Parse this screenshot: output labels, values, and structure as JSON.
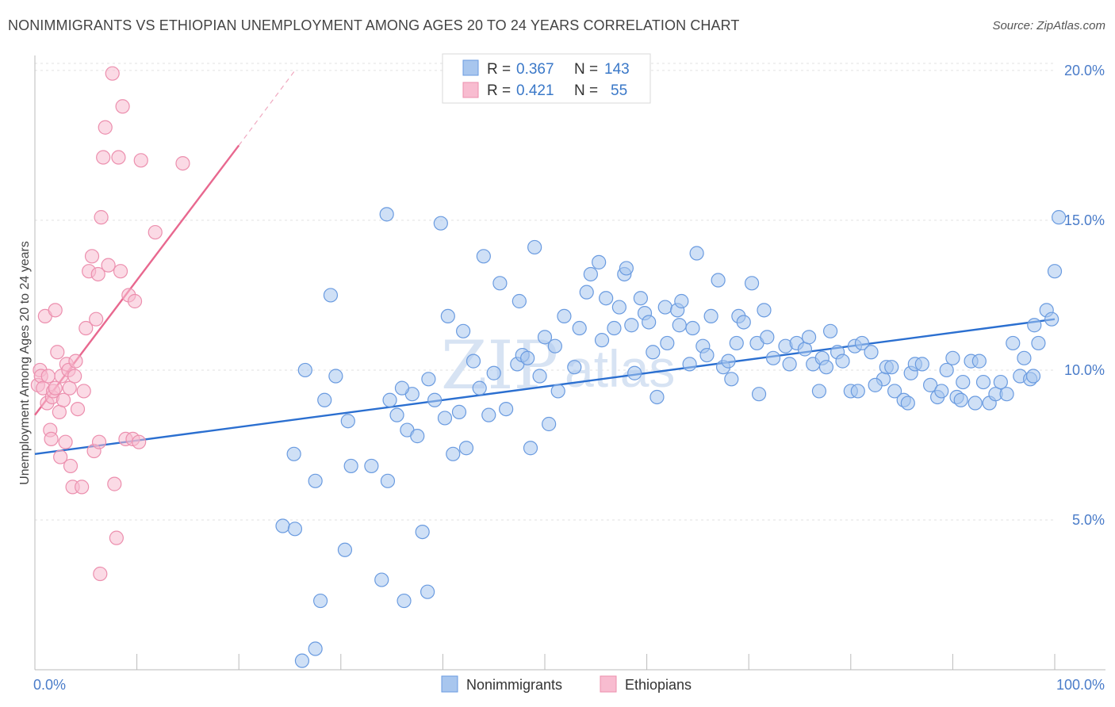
{
  "title": "NONIMMIGRANTS VS ETHIOPIAN UNEMPLOYMENT AMONG AGES 20 TO 24 YEARS CORRELATION CHART",
  "source": "Source: ZipAtlas.com",
  "watermark": {
    "zip": "ZIP",
    "atlas": "atlas"
  },
  "chart_data": {
    "type": "scatter",
    "ylabel": "Unemployment Among Ages 20 to 24 years",
    "xlim": [
      0,
      100
    ],
    "ylim": [
      0,
      20.5
    ],
    "x_tick_labels": [
      {
        "value": 0,
        "label": "0.0%"
      },
      {
        "value": 100,
        "label": "100.0%"
      }
    ],
    "y_ticks": [
      {
        "value": 5,
        "label": "5.0%"
      },
      {
        "value": 10,
        "label": "10.0%"
      },
      {
        "value": 15,
        "label": "15.0%"
      },
      {
        "value": 20,
        "label": "20.0%"
      }
    ],
    "x_minor_ticks": [
      0,
      10,
      20,
      30,
      40,
      50,
      60,
      70,
      80,
      90,
      100
    ],
    "grid": true,
    "legend": {
      "placement": "top-center",
      "rows": [
        {
          "r_label": "R =",
          "r": "0.367",
          "n_label": "N =",
          "n": "143",
          "color": "#a8c6ee",
          "stroke": "#6a9be0"
        },
        {
          "r_label": "R =",
          "r": "0.421",
          "n_label": "N =",
          "n": "55",
          "color": "#f8bcd0",
          "stroke": "#ec8fae"
        }
      ]
    },
    "series": [
      {
        "name": "Nonimmigrants",
        "color": "#a8c6ee",
        "stroke": "#6a9be0",
        "trend": {
          "x": [
            0,
            100
          ],
          "y": [
            7.2,
            11.7
          ],
          "color": "#2b6fd0"
        },
        "points": [
          [
            24.3,
            4.8
          ],
          [
            26.5,
            10.0
          ],
          [
            25.4,
            7.2
          ],
          [
            27.5,
            6.3
          ],
          [
            25.5,
            4.7
          ],
          [
            26.2,
            0.3
          ],
          [
            27.5,
            0.7
          ],
          [
            28.0,
            2.3
          ],
          [
            29.0,
            12.5
          ],
          [
            29.5,
            9.8
          ],
          [
            30.4,
            4.0
          ],
          [
            31.0,
            6.8
          ],
          [
            33.0,
            6.8
          ],
          [
            34.0,
            3.0
          ],
          [
            34.5,
            15.2
          ],
          [
            34.6,
            6.3
          ],
          [
            35.5,
            8.5
          ],
          [
            36.2,
            2.3
          ],
          [
            36.5,
            8.0
          ],
          [
            37.0,
            9.2
          ],
          [
            37.5,
            7.8
          ],
          [
            38.0,
            4.6
          ],
          [
            38.5,
            2.6
          ],
          [
            38.6,
            9.7
          ],
          [
            39.8,
            14.9
          ],
          [
            40.2,
            8.4
          ],
          [
            40.5,
            11.8
          ],
          [
            41.0,
            7.2
          ],
          [
            42.0,
            11.3
          ],
          [
            42.3,
            7.4
          ],
          [
            43.0,
            10.3
          ],
          [
            44.0,
            13.8
          ],
          [
            44.5,
            8.5
          ],
          [
            45.0,
            9.9
          ],
          [
            45.6,
            12.9
          ],
          [
            46.2,
            8.7
          ],
          [
            47.3,
            10.2
          ],
          [
            47.5,
            12.3
          ],
          [
            47.8,
            10.5
          ],
          [
            48.6,
            7.4
          ],
          [
            49.0,
            14.1
          ],
          [
            49.5,
            9.8
          ],
          [
            50.0,
            11.1
          ],
          [
            50.4,
            8.2
          ],
          [
            51.0,
            10.8
          ],
          [
            51.3,
            9.3
          ],
          [
            51.9,
            11.8
          ],
          [
            52.9,
            10.1
          ],
          [
            53.4,
            11.4
          ],
          [
            54.5,
            13.2
          ],
          [
            55.3,
            13.6
          ],
          [
            55.6,
            11.0
          ],
          [
            56.0,
            12.4
          ],
          [
            56.8,
            11.4
          ],
          [
            57.3,
            12.1
          ],
          [
            57.8,
            13.2
          ],
          [
            58.0,
            13.4
          ],
          [
            58.5,
            11.5
          ],
          [
            59.4,
            12.4
          ],
          [
            59.8,
            11.9
          ],
          [
            60.2,
            11.6
          ],
          [
            61.0,
            9.1
          ],
          [
            61.8,
            12.1
          ],
          [
            62.0,
            10.9
          ],
          [
            63.0,
            12.0
          ],
          [
            63.2,
            11.5
          ],
          [
            63.4,
            12.3
          ],
          [
            64.2,
            10.2
          ],
          [
            64.5,
            11.4
          ],
          [
            64.9,
            13.9
          ],
          [
            65.5,
            10.8
          ],
          [
            66.3,
            11.8
          ],
          [
            67.0,
            13.0
          ],
          [
            67.5,
            10.1
          ],
          [
            68.0,
            10.3
          ],
          [
            68.3,
            9.7
          ],
          [
            69.0,
            11.8
          ],
          [
            69.5,
            11.6
          ],
          [
            70.3,
            12.9
          ],
          [
            70.8,
            10.9
          ],
          [
            71.5,
            12.0
          ],
          [
            71.8,
            11.1
          ],
          [
            72.4,
            10.4
          ],
          [
            73.6,
            10.8
          ],
          [
            74.0,
            10.2
          ],
          [
            74.7,
            10.9
          ],
          [
            75.5,
            10.7
          ],
          [
            75.9,
            11.1
          ],
          [
            76.3,
            10.2
          ],
          [
            77.2,
            10.4
          ],
          [
            77.6,
            10.1
          ],
          [
            78.0,
            11.3
          ],
          [
            78.7,
            10.6
          ],
          [
            79.2,
            10.3
          ],
          [
            80.0,
            9.3
          ],
          [
            80.4,
            10.8
          ],
          [
            80.7,
            9.3
          ],
          [
            81.1,
            10.9
          ],
          [
            82.0,
            10.6
          ],
          [
            83.2,
            9.7
          ],
          [
            83.5,
            10.1
          ],
          [
            84.0,
            10.1
          ],
          [
            84.3,
            9.3
          ],
          [
            85.2,
            9.0
          ],
          [
            85.6,
            8.9
          ],
          [
            85.9,
            9.9
          ],
          [
            86.3,
            10.2
          ],
          [
            87.0,
            10.2
          ],
          [
            87.8,
            9.5
          ],
          [
            88.5,
            9.1
          ],
          [
            88.9,
            9.3
          ],
          [
            89.4,
            10.0
          ],
          [
            90.0,
            10.4
          ],
          [
            90.4,
            9.1
          ],
          [
            91.0,
            9.6
          ],
          [
            91.8,
            10.3
          ],
          [
            92.2,
            8.9
          ],
          [
            92.6,
            10.3
          ],
          [
            93.0,
            9.6
          ],
          [
            93.6,
            8.9
          ],
          [
            94.2,
            9.2
          ],
          [
            94.7,
            9.6
          ],
          [
            95.3,
            9.2
          ],
          [
            96.6,
            9.8
          ],
          [
            97.0,
            10.4
          ],
          [
            97.6,
            9.7
          ],
          [
            98.0,
            11.5
          ],
          [
            98.4,
            10.9
          ],
          [
            99.2,
            12.0
          ],
          [
            99.7,
            11.7
          ],
          [
            100.0,
            13.3
          ],
          [
            100.4,
            15.1
          ],
          [
            95.9,
            10.9
          ],
          [
            90.8,
            9.0
          ],
          [
            97.9,
            9.8
          ],
          [
            82.4,
            9.5
          ],
          [
            76.9,
            9.3
          ],
          [
            71.0,
            9.2
          ],
          [
            68.8,
            10.9
          ],
          [
            65.9,
            10.5
          ],
          [
            60.6,
            10.6
          ],
          [
            58.8,
            9.9
          ],
          [
            54.1,
            12.6
          ],
          [
            48.3,
            10.4
          ],
          [
            43.6,
            9.4
          ],
          [
            41.6,
            8.6
          ],
          [
            39.2,
            9.0
          ],
          [
            36.0,
            9.4
          ],
          [
            34.8,
            9.0
          ],
          [
            30.7,
            8.3
          ],
          [
            28.4,
            9.0
          ]
        ]
      },
      {
        "name": "Ethiopians",
        "color": "#f8bcd0",
        "stroke": "#ec8fae",
        "trend": {
          "x": [
            0,
            20
          ],
          "y": [
            8.5,
            17.5
          ],
          "dashed_to": {
            "x": 25.5,
            "y": 20.0
          },
          "color": "#e8688f"
        },
        "points": [
          [
            0.3,
            9.5
          ],
          [
            0.5,
            10.0
          ],
          [
            0.6,
            9.8
          ],
          [
            0.8,
            9.4
          ],
          [
            1.0,
            11.8
          ],
          [
            1.2,
            8.9
          ],
          [
            1.3,
            9.8
          ],
          [
            1.5,
            8.0
          ],
          [
            1.6,
            7.7
          ],
          [
            1.7,
            9.1
          ],
          [
            1.8,
            9.3
          ],
          [
            2.0,
            12.0
          ],
          [
            2.0,
            9.4
          ],
          [
            2.2,
            10.6
          ],
          [
            2.4,
            8.6
          ],
          [
            2.5,
            7.1
          ],
          [
            2.6,
            9.8
          ],
          [
            2.8,
            9.0
          ],
          [
            3.0,
            7.6
          ],
          [
            3.1,
            10.2
          ],
          [
            3.3,
            10.0
          ],
          [
            3.4,
            9.4
          ],
          [
            3.5,
            6.8
          ],
          [
            3.7,
            6.1
          ],
          [
            3.9,
            9.8
          ],
          [
            4.0,
            10.3
          ],
          [
            4.2,
            8.7
          ],
          [
            4.6,
            6.1
          ],
          [
            4.8,
            9.3
          ],
          [
            5.0,
            11.4
          ],
          [
            5.3,
            13.3
          ],
          [
            5.6,
            13.8
          ],
          [
            5.8,
            7.3
          ],
          [
            6.0,
            11.7
          ],
          [
            6.2,
            13.2
          ],
          [
            6.3,
            7.6
          ],
          [
            6.4,
            3.2
          ],
          [
            6.5,
            15.1
          ],
          [
            6.7,
            17.1
          ],
          [
            6.9,
            18.1
          ],
          [
            7.2,
            13.5
          ],
          [
            7.6,
            19.9
          ],
          [
            7.8,
            6.2
          ],
          [
            8.0,
            4.4
          ],
          [
            8.2,
            17.1
          ],
          [
            8.4,
            13.3
          ],
          [
            8.6,
            18.8
          ],
          [
            8.9,
            7.7
          ],
          [
            9.2,
            12.5
          ],
          [
            9.6,
            7.7
          ],
          [
            9.8,
            12.3
          ],
          [
            10.2,
            7.6
          ],
          [
            10.4,
            17.0
          ],
          [
            11.8,
            14.6
          ],
          [
            14.5,
            16.9
          ]
        ]
      }
    ]
  }
}
